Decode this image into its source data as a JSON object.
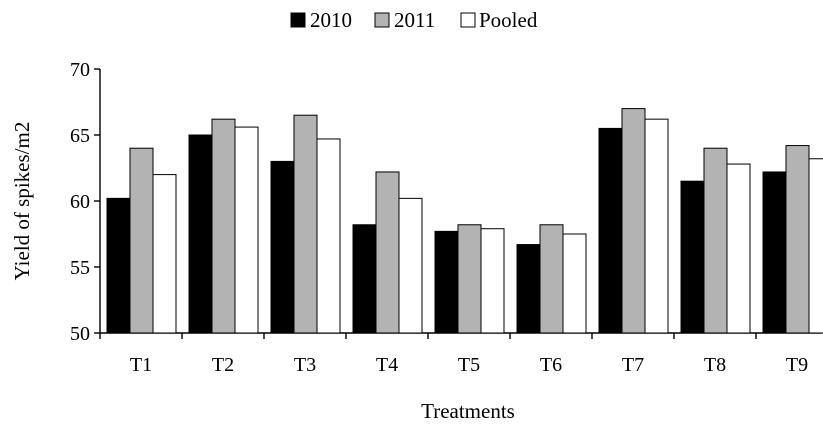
{
  "chart_data": {
    "type": "bar",
    "title": "",
    "xlabel": "Treatments",
    "ylabel": "Yield of spikes/m2",
    "ylim": [
      50,
      70
    ],
    "yticks": [
      50,
      55,
      60,
      65,
      70
    ],
    "grid": false,
    "legend_position": "top-center",
    "categories": [
      "T1",
      "T2",
      "T3",
      "T4",
      "T5",
      "T6",
      "T7",
      "T8",
      "T9"
    ],
    "series": [
      {
        "name": "2010",
        "color": "#000000",
        "values": [
          60.2,
          65.0,
          63.0,
          58.2,
          57.7,
          56.7,
          65.5,
          61.5,
          62.2
        ]
      },
      {
        "name": "2011",
        "color": "#b3b3b3",
        "values": [
          64.0,
          66.2,
          66.5,
          62.2,
          58.2,
          58.2,
          67.0,
          64.0,
          64.2
        ]
      },
      {
        "name": "Pooled",
        "color": "#ffffff",
        "values": [
          62.0,
          65.6,
          64.7,
          60.2,
          57.9,
          57.5,
          66.2,
          62.8,
          63.2
        ]
      }
    ]
  }
}
